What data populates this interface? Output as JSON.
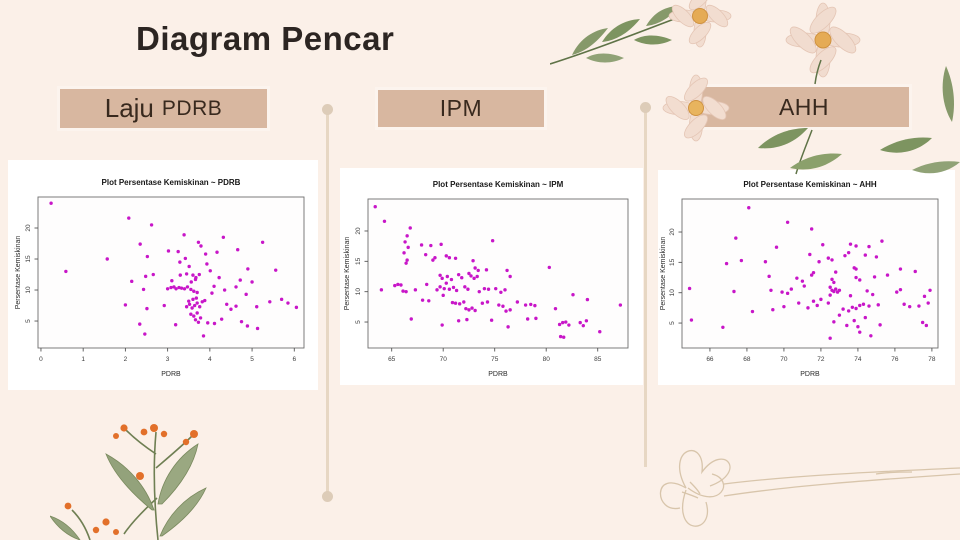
{
  "slide": {
    "title": "Diagram Pencar",
    "background_color": "#fbf0e8",
    "accent_box_color": "#d8b7a0",
    "timeline_color": "#e7d7c3",
    "point_color": "#c816c8"
  },
  "tabs": [
    {
      "label_primary": "Laju",
      "label_secondary": "PDRB"
    },
    {
      "label": "IPM"
    },
    {
      "label": "AHH"
    }
  ],
  "chart_data": [
    {
      "type": "scatter",
      "title": "Plot Persentase Kemiskinan ~ PDRB",
      "xlabel": "PDRB",
      "ylabel": "Persentase Kemiskinan",
      "xlim": [
        -0.07,
        6.23
      ],
      "ylim": [
        0.65,
        25.0
      ],
      "xticks": [
        0,
        1,
        2,
        3,
        4,
        5,
        6
      ],
      "yticks": [
        5,
        10,
        15,
        20
      ],
      "grid": false,
      "legend": null,
      "point_color": "#c816c8",
      "points": [
        [
          0.24,
          24.0
        ],
        [
          2.08,
          21.6
        ],
        [
          2.62,
          20.5
        ],
        [
          3.39,
          18.9
        ],
        [
          4.32,
          18.5
        ],
        [
          2.35,
          17.4
        ],
        [
          3.73,
          17.7
        ],
        [
          3.79,
          17.1
        ],
        [
          5.25,
          17.7
        ],
        [
          2.52,
          15.4
        ],
        [
          1.57,
          15.0
        ],
        [
          3.02,
          16.3
        ],
        [
          3.25,
          16.2
        ],
        [
          4.66,
          16.5
        ],
        [
          3.9,
          15.8
        ],
        [
          4.17,
          16.1
        ],
        [
          0.59,
          13.0
        ],
        [
          2.48,
          12.2
        ],
        [
          2.66,
          12.5
        ],
        [
          2.15,
          11.4
        ],
        [
          3.42,
          15.1
        ],
        [
          3.29,
          14.5
        ],
        [
          3.51,
          13.8
        ],
        [
          3.93,
          14.2
        ],
        [
          4.9,
          13.4
        ],
        [
          5.56,
          13.2
        ],
        [
          3.3,
          12.4
        ],
        [
          3.45,
          12.6
        ],
        [
          3.6,
          12.4
        ],
        [
          3.67,
          12.0
        ],
        [
          3.75,
          12.5
        ],
        [
          4.01,
          13.1
        ],
        [
          4.22,
          12.0
        ],
        [
          3.1,
          11.5
        ],
        [
          3.56,
          11.3
        ],
        [
          3.66,
          11.7
        ],
        [
          4.72,
          11.6
        ],
        [
          5.0,
          11.3
        ],
        [
          2.43,
          10.1
        ],
        [
          3.0,
          10.2
        ],
        [
          3.08,
          10.4
        ],
        [
          3.15,
          10.5
        ],
        [
          3.2,
          10.2
        ],
        [
          3.27,
          10.4
        ],
        [
          3.33,
          10.3
        ],
        [
          3.4,
          10.2
        ],
        [
          3.47,
          10.5
        ],
        [
          3.55,
          10.1
        ],
        [
          3.62,
          9.8
        ],
        [
          3.7,
          9.6
        ],
        [
          4.35,
          10.0
        ],
        [
          4.62,
          10.5
        ],
        [
          4.86,
          9.3
        ],
        [
          4.1,
          10.6
        ],
        [
          4.05,
          9.5
        ],
        [
          2.0,
          7.6
        ],
        [
          2.51,
          7.0
        ],
        [
          2.92,
          7.5
        ],
        [
          3.45,
          7.3
        ],
        [
          3.52,
          7.7
        ],
        [
          3.58,
          7.1
        ],
        [
          3.64,
          7.5
        ],
        [
          3.7,
          7.9
        ],
        [
          3.76,
          7.3
        ],
        [
          3.82,
          8.1
        ],
        [
          3.88,
          8.3
        ],
        [
          3.6,
          8.5
        ],
        [
          3.68,
          8.7
        ],
        [
          3.5,
          8.2
        ],
        [
          4.4,
          7.7
        ],
        [
          4.5,
          6.9
        ],
        [
          4.62,
          7.4
        ],
        [
          5.11,
          7.3
        ],
        [
          5.42,
          8.1
        ],
        [
          5.7,
          8.5
        ],
        [
          5.85,
          7.9
        ],
        [
          6.05,
          7.2
        ],
        [
          3.55,
          6.1
        ],
        [
          3.62,
          5.8
        ],
        [
          3.7,
          6.3
        ],
        [
          3.78,
          5.5
        ],
        [
          3.66,
          5.2
        ],
        [
          3.73,
          4.8
        ],
        [
          2.34,
          4.5
        ],
        [
          3.19,
          4.4
        ],
        [
          2.46,
          2.9
        ],
        [
          3.85,
          2.6
        ],
        [
          4.89,
          4.2
        ],
        [
          5.13,
          3.8
        ],
        [
          4.11,
          4.6
        ],
        [
          4.75,
          4.9
        ],
        [
          3.95,
          4.7
        ],
        [
          4.28,
          5.3
        ]
      ]
    },
    {
      "type": "scatter",
      "title": "Plot Persentase Kemiskinan ~ IPM",
      "xlabel": "PDRB",
      "ylabel": "Persentase Kemiskinan",
      "xlim": [
        62.7,
        87.94
      ],
      "ylim": [
        0.72,
        25.27
      ],
      "xticks": [
        65,
        70,
        75,
        80,
        85
      ],
      "yticks": [
        5,
        10,
        15,
        20
      ],
      "grid": false,
      "legend": null,
      "point_color": "#c816c8",
      "points": [
        [
          63.4,
          24.0
        ],
        [
          64.3,
          21.6
        ],
        [
          66.8,
          20.5
        ],
        [
          66.5,
          19.2
        ],
        [
          66.3,
          18.2
        ],
        [
          66.6,
          17.3
        ],
        [
          66.2,
          16.4
        ],
        [
          66.5,
          15.2
        ],
        [
          66.4,
          14.7
        ],
        [
          67.9,
          17.7
        ],
        [
          68.8,
          17.6
        ],
        [
          69.8,
          17.8
        ],
        [
          68.3,
          16.1
        ],
        [
          69.2,
          15.6
        ],
        [
          69.0,
          15.2
        ],
        [
          70.3,
          15.9
        ],
        [
          70.6,
          15.6
        ],
        [
          71.2,
          15.5
        ],
        [
          72.9,
          15.1
        ],
        [
          74.8,
          18.4
        ],
        [
          73.1,
          13.9
        ],
        [
          73.4,
          13.5
        ],
        [
          72.5,
          13.0
        ],
        [
          72.7,
          12.6
        ],
        [
          73.0,
          12.2
        ],
        [
          73.3,
          12.5
        ],
        [
          71.5,
          12.8
        ],
        [
          71.8,
          12.3
        ],
        [
          70.8,
          12.0
        ],
        [
          70.4,
          12.5
        ],
        [
          69.7,
          12.7
        ],
        [
          69.9,
          12.2
        ],
        [
          74.2,
          13.6
        ],
        [
          76.2,
          13.5
        ],
        [
          76.5,
          12.5
        ],
        [
          80.3,
          14.0
        ],
        [
          64.0,
          10.3
        ],
        [
          65.3,
          11.0
        ],
        [
          65.6,
          11.2
        ],
        [
          65.9,
          11.1
        ],
        [
          66.1,
          10.1
        ],
        [
          66.4,
          10.0
        ],
        [
          67.3,
          10.3
        ],
        [
          68.4,
          11.2
        ],
        [
          69.4,
          10.3
        ],
        [
          69.7,
          10.8
        ],
        [
          70.1,
          10.5
        ],
        [
          70.3,
          11.4
        ],
        [
          70.6,
          10.4
        ],
        [
          71.0,
          10.7
        ],
        [
          71.3,
          10.2
        ],
        [
          72.1,
          10.8
        ],
        [
          72.4,
          10.4
        ],
        [
          73.5,
          10.0
        ],
        [
          74.0,
          10.5
        ],
        [
          74.4,
          10.4
        ],
        [
          75.1,
          10.5
        ],
        [
          75.6,
          9.9
        ],
        [
          76.0,
          10.3
        ],
        [
          68.0,
          8.6
        ],
        [
          68.6,
          8.5
        ],
        [
          70.0,
          9.4
        ],
        [
          70.9,
          8.2
        ],
        [
          71.2,
          8.1
        ],
        [
          71.6,
          8.0
        ],
        [
          72.0,
          8.3
        ],
        [
          73.8,
          8.1
        ],
        [
          74.3,
          8.3
        ],
        [
          75.4,
          7.8
        ],
        [
          75.8,
          7.6
        ],
        [
          76.5,
          7.0
        ],
        [
          77.2,
          8.3
        ],
        [
          78.0,
          7.8
        ],
        [
          78.5,
          7.9
        ],
        [
          78.9,
          7.7
        ],
        [
          72.2,
          7.2
        ],
        [
          72.5,
          7.0
        ],
        [
          72.8,
          7.3
        ],
        [
          73.1,
          6.9
        ],
        [
          76.1,
          6.8
        ],
        [
          66.9,
          5.5
        ],
        [
          69.9,
          4.5
        ],
        [
          71.5,
          5.2
        ],
        [
          72.3,
          5.4
        ],
        [
          74.7,
          5.3
        ],
        [
          76.3,
          4.2
        ],
        [
          78.2,
          5.5
        ],
        [
          79.0,
          5.6
        ],
        [
          80.9,
          7.2
        ],
        [
          81.3,
          4.6
        ],
        [
          81.6,
          4.9
        ],
        [
          81.9,
          5.0
        ],
        [
          82.2,
          4.5
        ],
        [
          82.6,
          9.5
        ],
        [
          83.3,
          4.9
        ],
        [
          83.6,
          4.4
        ],
        [
          83.9,
          5.2
        ],
        [
          84.0,
          8.7
        ],
        [
          81.4,
          2.6
        ],
        [
          81.7,
          2.5
        ],
        [
          85.2,
          3.4
        ],
        [
          87.2,
          7.8
        ]
      ]
    },
    {
      "type": "scatter",
      "title": "Plot Persentase Kemiskinan ~ AHH",
      "xlabel": "PDRB",
      "ylabel": "Persentase Kemiskinan",
      "xlim": [
        64.49,
        78.33
      ],
      "ylim": [
        0.89,
        25.44
      ],
      "xticks": [
        66,
        68,
        70,
        72,
        74,
        76,
        78
      ],
      "yticks": [
        5,
        10,
        15,
        20
      ],
      "grid": false,
      "legend": null,
      "point_color": "#c816c8",
      "points": [
        [
          68.1,
          24.0
        ],
        [
          70.2,
          21.6
        ],
        [
          71.5,
          20.5
        ],
        [
          67.4,
          19.0
        ],
        [
          75.3,
          18.5
        ],
        [
          73.6,
          18.0
        ],
        [
          73.9,
          17.7
        ],
        [
          69.6,
          17.5
        ],
        [
          72.1,
          17.9
        ],
        [
          74.6,
          17.6
        ],
        [
          73.5,
          16.6
        ],
        [
          74.4,
          16.2
        ],
        [
          73.3,
          16.1
        ],
        [
          71.4,
          16.3
        ],
        [
          75.0,
          15.9
        ],
        [
          72.4,
          15.7
        ],
        [
          72.6,
          15.4
        ],
        [
          71.9,
          15.1
        ],
        [
          69.0,
          15.1
        ],
        [
          67.7,
          15.3
        ],
        [
          66.9,
          14.8
        ],
        [
          73.8,
          14.1
        ],
        [
          73.9,
          13.9
        ],
        [
          76.3,
          13.9
        ],
        [
          77.1,
          13.5
        ],
        [
          72.8,
          13.4
        ],
        [
          71.6,
          13.3
        ],
        [
          71.5,
          12.9
        ],
        [
          69.2,
          12.7
        ],
        [
          70.7,
          12.4
        ],
        [
          71.0,
          11.9
        ],
        [
          72.6,
          12.2
        ],
        [
          72.7,
          11.7
        ],
        [
          73.9,
          12.5
        ],
        [
          74.1,
          12.1
        ],
        [
          74.9,
          12.6
        ],
        [
          75.6,
          12.9
        ],
        [
          64.9,
          10.7
        ],
        [
          67.3,
          10.2
        ],
        [
          69.3,
          10.4
        ],
        [
          69.9,
          10.1
        ],
        [
          70.2,
          9.9
        ],
        [
          70.4,
          10.6
        ],
        [
          71.1,
          11.1
        ],
        [
          72.5,
          10.9
        ],
        [
          72.6,
          10.4
        ],
        [
          72.7,
          10.2
        ],
        [
          72.8,
          10.6
        ],
        [
          72.9,
          10.1
        ],
        [
          73.0,
          10.4
        ],
        [
          72.5,
          9.6
        ],
        [
          73.6,
          9.5
        ],
        [
          74.5,
          10.3
        ],
        [
          74.8,
          9.7
        ],
        [
          76.1,
          10.1
        ],
        [
          76.3,
          10.5
        ],
        [
          77.9,
          10.4
        ],
        [
          65.0,
          5.5
        ],
        [
          66.7,
          4.3
        ],
        [
          68.3,
          6.9
        ],
        [
          69.4,
          7.2
        ],
        [
          70.0,
          7.7
        ],
        [
          70.8,
          8.3
        ],
        [
          71.3,
          7.5
        ],
        [
          71.6,
          8.6
        ],
        [
          71.8,
          7.9
        ],
        [
          72.0,
          8.9
        ],
        [
          72.4,
          8.3
        ],
        [
          73.2,
          7.3
        ],
        [
          73.5,
          7.0
        ],
        [
          73.7,
          7.6
        ],
        [
          73.9,
          7.4
        ],
        [
          74.1,
          7.9
        ],
        [
          74.3,
          8.1
        ],
        [
          74.6,
          7.8
        ],
        [
          75.1,
          8.0
        ],
        [
          76.5,
          8.1
        ],
        [
          76.8,
          7.7
        ],
        [
          77.3,
          7.8
        ],
        [
          77.6,
          9.4
        ],
        [
          77.8,
          8.3
        ],
        [
          72.7,
          5.2
        ],
        [
          73.4,
          4.6
        ],
        [
          73.8,
          5.4
        ],
        [
          74.0,
          4.4
        ],
        [
          74.4,
          5.9
        ],
        [
          74.7,
          2.9
        ],
        [
          75.2,
          4.7
        ],
        [
          72.5,
          2.5
        ],
        [
          74.1,
          3.5
        ],
        [
          77.5,
          5.1
        ],
        [
          77.7,
          4.6
        ],
        [
          73.0,
          6.3
        ]
      ]
    }
  ]
}
